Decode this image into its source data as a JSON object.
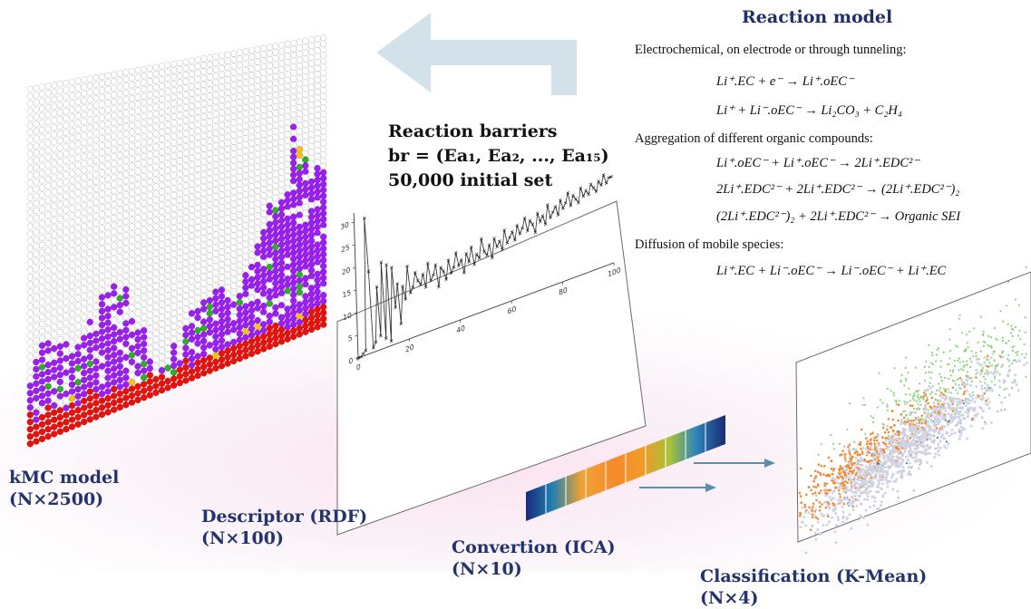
{
  "colors": {
    "label_navy": "#23336e",
    "arrow": "#d3e2ea",
    "empty_site": "#ffffff",
    "organic": "#9b1ff0",
    "inorganic": "#e8120d",
    "mobile_species": "#2fae2a",
    "other_species": "#f6c315",
    "cluster_green": "#8ed37c",
    "cluster_orange": "#f08a35",
    "cluster_lavender": "#cfd2e6",
    "cluster_blue": "#2e7fbf"
  },
  "icons": [
    "left-arrow-icon",
    "right-arrow-icon"
  ],
  "reaction_model": {
    "title": "Reaction model",
    "sections": [
      {
        "heading": "Electrochemical, on electrode or through tunneling:",
        "equations": [
          "Li⁺.EC + e⁻ → Li⁺.oEC⁻",
          "Li⁺ + Li⁻.oEC⁻ → Li₂CO₃ + C₂H₄"
        ]
      },
      {
        "heading": "Aggregation of different organic compounds:",
        "equations": [
          "Li⁺.oEC⁻ + Li⁺.oEC⁻ → 2Li⁺.EDC²⁻",
          "2Li⁺.EDC²⁻ + 2Li⁺.EDC²⁻ → (2Li⁺.EDC²⁻)₂",
          "(2Li⁺.EDC²⁻)₂ + 2Li⁺.EDC²⁻ → Organic SEI"
        ]
      },
      {
        "heading": "Diffusion of mobile species:",
        "equations": [
          "Li⁺.EC + Li⁻.oEC⁻ → Li⁻.oEC⁻ + Li⁺.EC"
        ]
      }
    ]
  },
  "barriers": {
    "line1": "Reaction barriers",
    "line2": "br = (Ea₁, Ea₂, ..., Ea₁₅)",
    "line3": "50,000 initial set"
  },
  "stages": {
    "kmc": {
      "name": "kMC model",
      "dims": "(N×2500)"
    },
    "rdf": {
      "name": "Descriptor (RDF)",
      "dims": "(N×100)"
    },
    "ica": {
      "name": "Convertion (ICA)",
      "dims": "(N×10)"
    },
    "kmean": {
      "name": "Classification (K-Mean)",
      "dims": "(N×4)"
    }
  },
  "chart_data": {
    "type": "line",
    "x_ticks": [
      "0",
      "20",
      "40",
      "60",
      "80",
      "100"
    ],
    "y_ticks": [
      "0",
      "5",
      "10",
      "15",
      "20",
      "25",
      "30"
    ],
    "xlim": [
      0,
      100
    ],
    "ylim": [
      0,
      32
    ],
    "marker": "x",
    "grid": false,
    "x": [
      0,
      1,
      2,
      3,
      4,
      5,
      6,
      7,
      8,
      9,
      10,
      11,
      12,
      13,
      14,
      15,
      16,
      17,
      18,
      19,
      20,
      21,
      22,
      23,
      24,
      25,
      26,
      27,
      28,
      29,
      30,
      31,
      32,
      33,
      34,
      35,
      36,
      37,
      38,
      39,
      40,
      41,
      42,
      43,
      44,
      45,
      46,
      47,
      48,
      49,
      50,
      51,
      52,
      53,
      54,
      55,
      56,
      57,
      58,
      59,
      60,
      61,
      62,
      63,
      64,
      65,
      66,
      67,
      68,
      69,
      70,
      71,
      72,
      73,
      74,
      75,
      76,
      77,
      78,
      79,
      80,
      81,
      82,
      83,
      84,
      85,
      86,
      87,
      88,
      89,
      90,
      91,
      92,
      93,
      94,
      95,
      96,
      97,
      98,
      99,
      100
    ],
    "y": [
      0,
      0,
      0.5,
      1,
      30,
      18,
      1,
      2,
      14,
      3,
      19,
      2,
      18,
      1,
      17,
      8,
      13,
      4,
      12,
      9,
      16,
      10,
      11,
      14,
      12,
      11,
      13,
      10,
      15,
      11,
      12,
      14,
      9,
      13,
      12,
      10,
      14,
      11,
      12,
      15,
      12,
      13,
      10,
      14,
      12,
      15,
      11,
      13,
      12,
      16,
      13,
      12,
      14,
      11,
      15,
      13,
      14,
      12,
      16,
      13,
      14,
      15,
      13,
      16,
      14,
      15,
      17,
      14,
      16,
      15,
      13,
      17,
      15,
      16,
      14,
      18,
      15,
      16,
      17,
      15,
      18,
      16,
      17,
      19,
      16,
      18,
      17,
      16,
      19,
      17,
      18,
      17,
      19,
      18,
      17,
      19,
      18,
      20,
      18,
      19,
      19
    ]
  }
}
